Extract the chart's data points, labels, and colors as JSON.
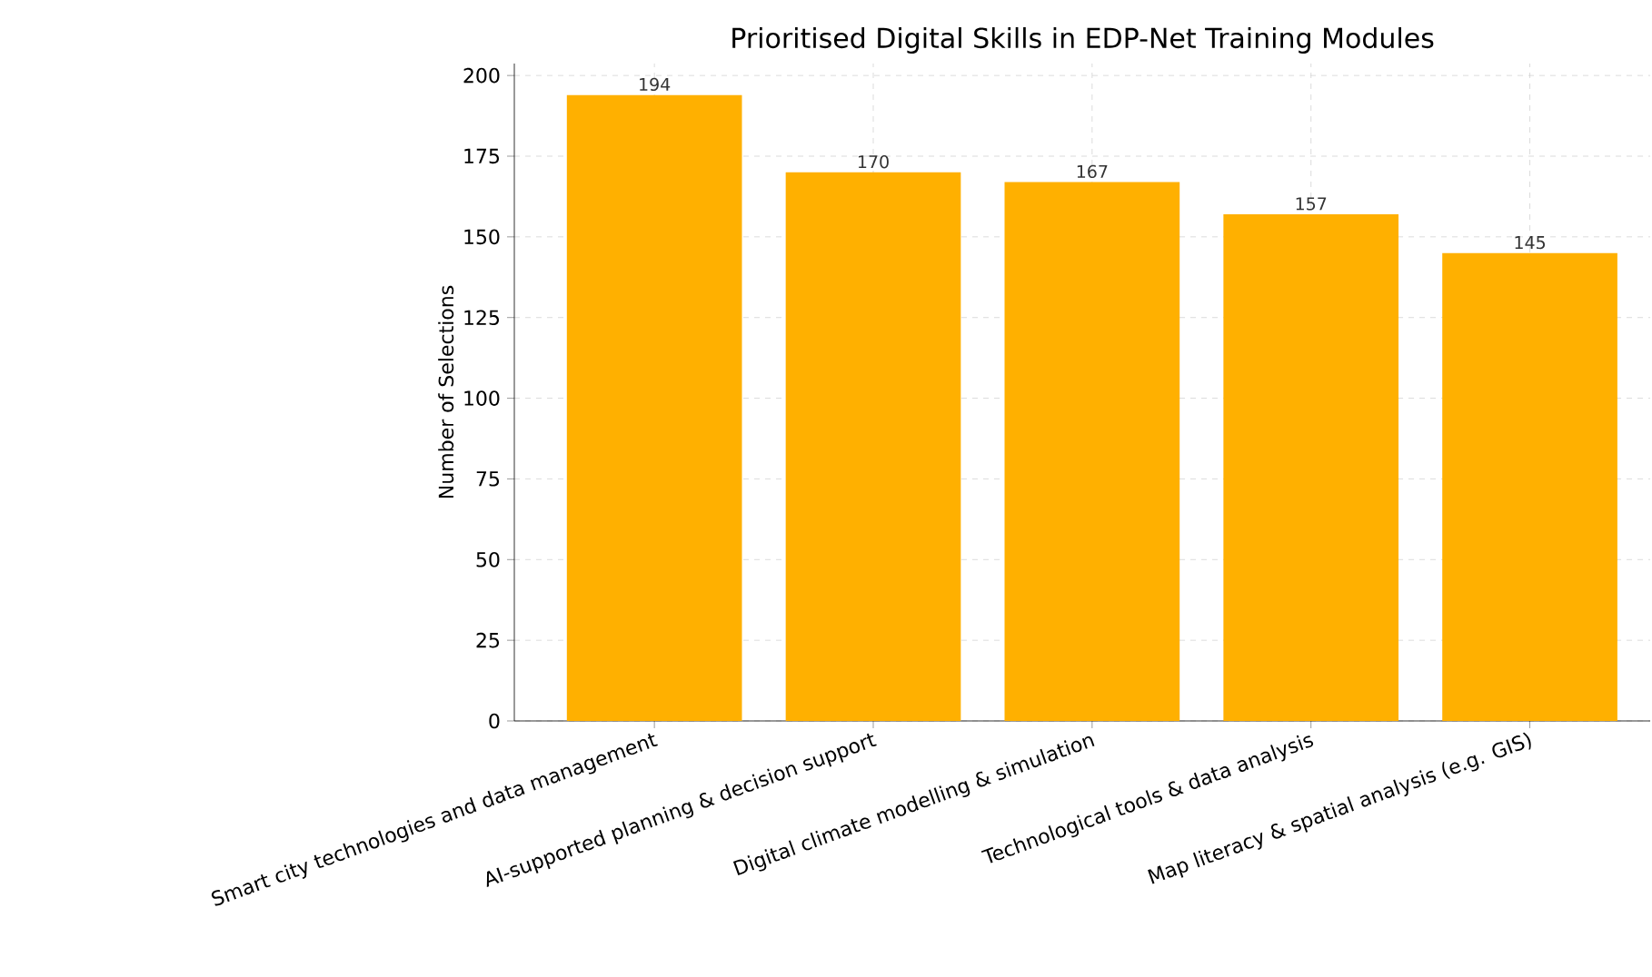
{
  "chart_data": {
    "type": "bar",
    "title": "Prioritised Digital Skills in EDP-Net Training Modules",
    "ylabel": "Number of Selections",
    "categories": [
      "Smart city technologies and data management",
      "AI-supported planning & decision support",
      "Digital climate modelling & simulation",
      "Technological tools & data analysis",
      "Map literacy & spatial analysis (e.g. GIS)"
    ],
    "values": [
      194,
      170,
      167,
      157,
      145
    ],
    "color": "#ffb000",
    "ylim": [
      0,
      203.7
    ],
    "yticks": [
      0,
      25,
      50,
      75,
      100,
      125,
      150,
      175,
      200
    ],
    "grid": true,
    "data_labels": true
  }
}
